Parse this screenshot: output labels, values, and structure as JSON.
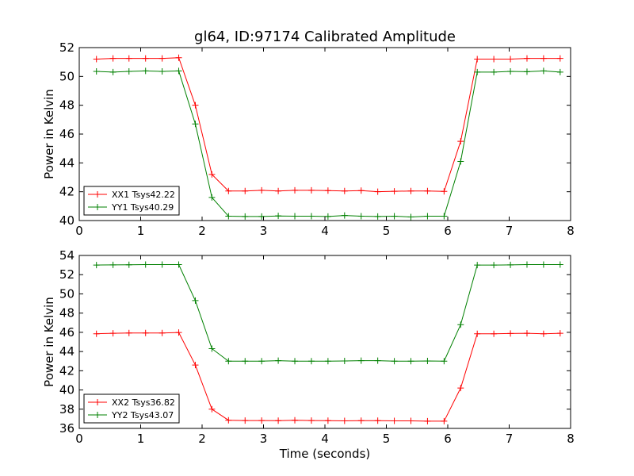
{
  "figure_title": "gl64, ID:97174 Calibrated Amplitude",
  "chart_data": [
    {
      "type": "line",
      "title": "gl64, ID:97174 Calibrated Amplitude",
      "xlabel": "",
      "ylabel": "Power in Kelvin",
      "xlim": [
        0,
        8
      ],
      "ylim": [
        40,
        52
      ],
      "xticks": [
        "0",
        "1",
        "2",
        "3",
        "4",
        "5",
        "6",
        "7",
        "8"
      ],
      "yticks": [
        "40",
        "42",
        "44",
        "46",
        "48",
        "50",
        "52"
      ],
      "grid": false,
      "legend_position": "lower-left",
      "x": [
        0.28,
        0.55,
        0.81,
        1.08,
        1.35,
        1.62,
        1.89,
        2.16,
        2.43,
        2.7,
        2.97,
        3.24,
        3.51,
        3.78,
        4.05,
        4.32,
        4.59,
        4.86,
        5.13,
        5.4,
        5.67,
        5.94,
        6.21,
        6.48,
        6.75,
        7.02,
        7.29,
        7.56,
        7.83
      ],
      "series": [
        {
          "name": "XX1 Tsys42.22",
          "color": "#ff0000",
          "values": [
            51.2,
            51.25,
            51.25,
            51.25,
            51.25,
            51.3,
            48.0,
            43.2,
            42.05,
            42.05,
            42.1,
            42.05,
            42.1,
            42.1,
            42.08,
            42.05,
            42.08,
            42.0,
            42.03,
            42.05,
            42.05,
            42.02,
            45.5,
            51.2,
            51.2,
            51.2,
            51.25,
            51.25,
            51.25
          ]
        },
        {
          "name": "YY1 Tsys40.29",
          "color": "#008000",
          "values": [
            50.35,
            50.3,
            50.35,
            50.38,
            50.35,
            50.38,
            46.7,
            41.6,
            40.3,
            40.28,
            40.28,
            40.32,
            40.3,
            40.3,
            40.28,
            40.35,
            40.3,
            40.28,
            40.3,
            40.25,
            40.3,
            40.3,
            44.1,
            50.3,
            50.3,
            50.35,
            50.33,
            50.38,
            50.3
          ]
        }
      ]
    },
    {
      "type": "line",
      "title": "",
      "xlabel": "Time (seconds)",
      "ylabel": "Power in Kelvin",
      "xlim": [
        0,
        8
      ],
      "ylim": [
        36,
        54
      ],
      "xticks": [
        "0",
        "1",
        "2",
        "3",
        "4",
        "5",
        "6",
        "7",
        "8"
      ],
      "yticks": [
        "36",
        "38",
        "40",
        "42",
        "44",
        "46",
        "48",
        "50",
        "52",
        "54"
      ],
      "grid": false,
      "legend_position": "lower-left",
      "x": [
        0.28,
        0.55,
        0.81,
        1.08,
        1.35,
        1.62,
        1.89,
        2.16,
        2.43,
        2.7,
        2.97,
        3.24,
        3.51,
        3.78,
        4.05,
        4.32,
        4.59,
        4.86,
        5.13,
        5.4,
        5.67,
        5.94,
        6.21,
        6.48,
        6.75,
        7.02,
        7.29,
        7.56,
        7.83
      ],
      "series": [
        {
          "name": "XX2 Tsys36.82",
          "color": "#ff0000",
          "values": [
            45.85,
            45.9,
            45.93,
            45.93,
            45.93,
            45.98,
            42.6,
            38.0,
            36.85,
            36.82,
            36.82,
            36.8,
            36.85,
            36.82,
            36.8,
            36.78,
            36.8,
            36.8,
            36.78,
            36.78,
            36.75,
            36.75,
            40.2,
            45.85,
            45.85,
            45.88,
            45.9,
            45.85,
            45.9
          ]
        },
        {
          "name": "YY2 Tsys43.07",
          "color": "#008000",
          "values": [
            53.0,
            53.02,
            53.03,
            53.05,
            53.05,
            53.05,
            49.3,
            44.3,
            43.0,
            43.0,
            43.0,
            43.05,
            43.0,
            43.0,
            43.0,
            43.02,
            43.05,
            43.05,
            43.0,
            43.0,
            43.02,
            43.0,
            46.8,
            53.0,
            53.0,
            53.02,
            53.05,
            53.05,
            53.05
          ]
        }
      ]
    }
  ]
}
